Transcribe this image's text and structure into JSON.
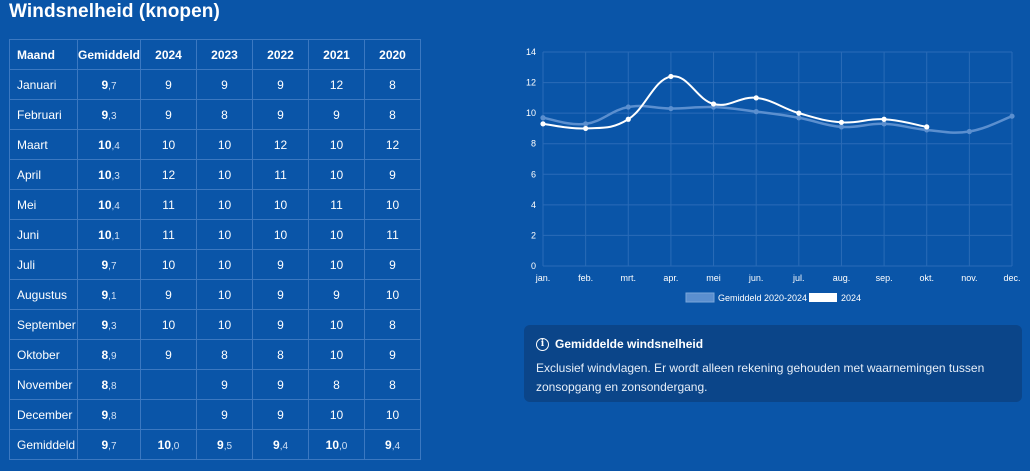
{
  "title": "Windsnelheid (knopen)",
  "table": {
    "headers": [
      "Maand",
      "Gemiddeld",
      "2024",
      "2023",
      "2022",
      "2021",
      "2020"
    ],
    "rows": [
      {
        "month": "Januari",
        "avg_whole": "9",
        "avg_dec": ",7",
        "y2024": "9",
        "y2023": "9",
        "y2022": "9",
        "y2021": "12",
        "y2020": "8"
      },
      {
        "month": "Februari",
        "avg_whole": "9",
        "avg_dec": ",3",
        "y2024": "9",
        "y2023": "8",
        "y2022": "9",
        "y2021": "9",
        "y2020": "8"
      },
      {
        "month": "Maart",
        "avg_whole": "10",
        "avg_dec": ",4",
        "y2024": "10",
        "y2023": "10",
        "y2022": "12",
        "y2021": "10",
        "y2020": "12"
      },
      {
        "month": "April",
        "avg_whole": "10",
        "avg_dec": ",3",
        "y2024": "12",
        "y2023": "10",
        "y2022": "11",
        "y2021": "10",
        "y2020": "9"
      },
      {
        "month": "Mei",
        "avg_whole": "10",
        "avg_dec": ",4",
        "y2024": "11",
        "y2023": "10",
        "y2022": "10",
        "y2021": "11",
        "y2020": "10"
      },
      {
        "month": "Juni",
        "avg_whole": "10",
        "avg_dec": ",1",
        "y2024": "11",
        "y2023": "10",
        "y2022": "10",
        "y2021": "10",
        "y2020": "11"
      },
      {
        "month": "Juli",
        "avg_whole": "9",
        "avg_dec": ",7",
        "y2024": "10",
        "y2023": "10",
        "y2022": "9",
        "y2021": "10",
        "y2020": "9"
      },
      {
        "month": "Augustus",
        "avg_whole": "9",
        "avg_dec": ",1",
        "y2024": "9",
        "y2023": "10",
        "y2022": "9",
        "y2021": "9",
        "y2020": "10"
      },
      {
        "month": "September",
        "avg_whole": "9",
        "avg_dec": ",3",
        "y2024": "10",
        "y2023": "10",
        "y2022": "9",
        "y2021": "10",
        "y2020": "8"
      },
      {
        "month": "Oktober",
        "avg_whole": "8",
        "avg_dec": ",9",
        "y2024": "9",
        "y2023": "8",
        "y2022": "8",
        "y2021": "10",
        "y2020": "9"
      },
      {
        "month": "November",
        "avg_whole": "8",
        "avg_dec": ",8",
        "y2024": "",
        "y2023": "9",
        "y2022": "9",
        "y2021": "8",
        "y2020": "8"
      },
      {
        "month": "December",
        "avg_whole": "9",
        "avg_dec": ",8",
        "y2024": "",
        "y2023": "9",
        "y2022": "9",
        "y2021": "10",
        "y2020": "10"
      }
    ],
    "footer": {
      "label": "Gemiddeld",
      "cells": [
        {
          "whole": "9",
          "dec": ",7"
        },
        {
          "whole": "10",
          "dec": ",0"
        },
        {
          "whole": "9",
          "dec": ",5"
        },
        {
          "whole": "9",
          "dec": ",4"
        },
        {
          "whole": "10",
          "dec": ",0"
        },
        {
          "whole": "9",
          "dec": ",4"
        }
      ]
    }
  },
  "chart_data": {
    "type": "line",
    "categories": [
      "jan.",
      "feb.",
      "mrt.",
      "apr.",
      "mei",
      "jun.",
      "jul.",
      "aug.",
      "sep.",
      "okt.",
      "nov.",
      "dec."
    ],
    "yticks": [
      "0",
      "2",
      "4",
      "6",
      "8",
      "10",
      "12",
      "14"
    ],
    "ylim": [
      0,
      14
    ],
    "series": [
      {
        "name": "Gemiddeld 2020-2024",
        "color": "#5b8fcf",
        "values": [
          9.7,
          9.3,
          10.4,
          10.3,
          10.4,
          10.1,
          9.7,
          9.1,
          9.3,
          8.9,
          8.8,
          9.8
        ]
      },
      {
        "name": "2024",
        "color": "#ffffff",
        "values": [
          9.3,
          9.0,
          9.6,
          12.4,
          10.6,
          11.0,
          10.0,
          9.4,
          9.6,
          9.1,
          null,
          null
        ]
      }
    ],
    "legend_position": "bottom"
  },
  "info": {
    "icon": "info-icon",
    "title": "Gemiddelde windsnelheid",
    "body": "Exclusief windvlagen. Er wordt alleen rekening gehouden met waarnemingen tussen zonsopgang en zonsondergang."
  }
}
